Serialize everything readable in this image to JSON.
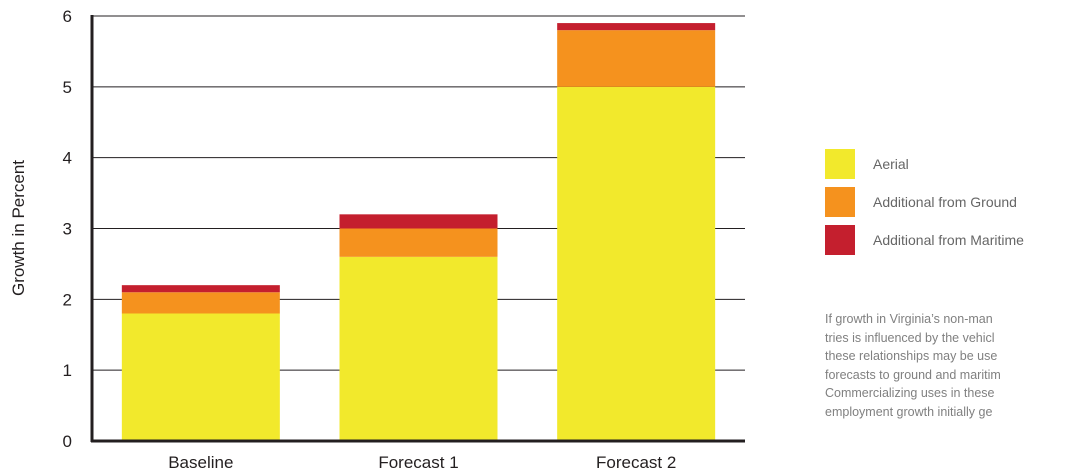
{
  "chart_data": {
    "type": "bar",
    "stacked": true,
    "categories": [
      "Baseline",
      "Forecast 1",
      "Forecast 2"
    ],
    "series": [
      {
        "name": "Aerial",
        "values": [
          1.8,
          2.6,
          5.0
        ],
        "color": "#f2e92c"
      },
      {
        "name": "Additional from Ground",
        "values": [
          0.3,
          0.4,
          0.8
        ],
        "color": "#f5921e"
      },
      {
        "name": "Additional from Maritime",
        "values": [
          0.1,
          0.2,
          0.1
        ],
        "color": "#c41f2e"
      }
    ],
    "ylabel": "Growth in Percent",
    "xlabel": "",
    "ylim": [
      0,
      6
    ],
    "yticks": [
      "0",
      "1",
      "2",
      "3",
      "4",
      "5",
      "6"
    ],
    "grid": true,
    "legend_position": "right"
  },
  "note": {
    "lines": [
      "If growth in Virginia’s non-man",
      "tries is influenced by the vehicl",
      "these relationships may be use",
      "forecasts to ground and maritim",
      "Commercializing uses in these",
      "employment growth initially ge"
    ]
  }
}
